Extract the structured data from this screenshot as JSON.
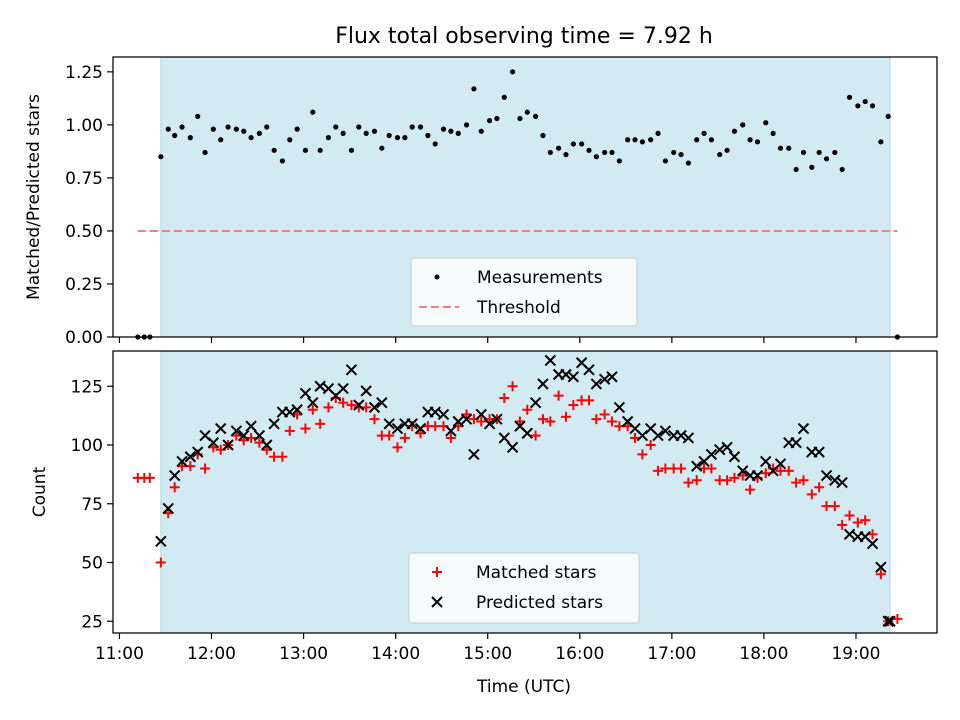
{
  "figure": {
    "title": "Flux total observing time = 7.92 h",
    "xlabel": "Time (UTC)"
  },
  "colors": {
    "shade": "#add8e6",
    "measurement": "#000000",
    "threshold": "#f08080",
    "matched": "#ff0000",
    "predicted": "#000000"
  },
  "chart_data": [
    {
      "type": "scatter",
      "ylabel": "Matched/Predicted stars",
      "xlim": [
        10.93,
        19.88
      ],
      "ylim": [
        0,
        1.32
      ],
      "xticks": [
        11,
        12,
        13,
        14,
        15,
        16,
        17,
        18,
        19
      ],
      "yticks": [
        0,
        0.25,
        0.5,
        0.75,
        1.0,
        1.25
      ],
      "ytick_labels": [
        "0.00",
        "0.25",
        "0.50",
        "0.75",
        "1.00",
        "1.25"
      ],
      "shaded_x_range": [
        11.45,
        19.37
      ],
      "legend": {
        "position": "lower-center",
        "entries": [
          "Measurements",
          "Threshold"
        ]
      },
      "threshold": {
        "name": "Threshold",
        "y": 0.5,
        "x_range": [
          11.2,
          19.45
        ],
        "style": "dashed"
      },
      "series": [
        {
          "name": "Measurements",
          "marker": "dot",
          "x": [
            11.2,
            11.27,
            11.33,
            11.45,
            11.53,
            11.6,
            11.68,
            11.77,
            11.85,
            11.93,
            12.02,
            12.1,
            12.18,
            12.27,
            12.35,
            12.43,
            12.52,
            12.6,
            12.68,
            12.77,
            12.85,
            12.93,
            13.02,
            13.1,
            13.18,
            13.27,
            13.35,
            13.43,
            13.52,
            13.6,
            13.68,
            13.77,
            13.85,
            13.93,
            14.02,
            14.1,
            14.18,
            14.27,
            14.35,
            14.43,
            14.52,
            14.6,
            14.68,
            14.77,
            14.85,
            14.93,
            15.02,
            15.1,
            15.18,
            15.27,
            15.35,
            15.43,
            15.52,
            15.6,
            15.68,
            15.77,
            15.85,
            15.93,
            16.02,
            16.1,
            16.18,
            16.27,
            16.35,
            16.43,
            16.52,
            16.6,
            16.68,
            16.77,
            16.85,
            16.93,
            17.02,
            17.1,
            17.18,
            17.27,
            17.35,
            17.43,
            17.52,
            17.6,
            17.68,
            17.77,
            17.85,
            17.93,
            18.02,
            18.1,
            18.18,
            18.27,
            18.35,
            18.43,
            18.52,
            18.6,
            18.68,
            18.77,
            18.85,
            18.93,
            19.02,
            19.1,
            19.18,
            19.27,
            19.35,
            19.45
          ],
          "y": [
            0,
            0,
            0,
            0.85,
            0.98,
            0.95,
            0.99,
            0.94,
            1.04,
            0.87,
            0.98,
            0.93,
            0.99,
            0.98,
            0.97,
            0.94,
            0.96,
            0.99,
            0.88,
            0.83,
            0.93,
            0.98,
            0.88,
            1.06,
            0.88,
            0.94,
            0.99,
            0.96,
            0.88,
            0.99,
            0.96,
            0.97,
            0.89,
            0.95,
            0.94,
            0.94,
            0.99,
            0.99,
            0.95,
            0.91,
            0.98,
            0.97,
            0.96,
            1.0,
            1.17,
            0.97,
            1.02,
            1.03,
            1.13,
            1.25,
            1.03,
            1.06,
            1.04,
            0.95,
            0.87,
            0.89,
            0.86,
            0.91,
            0.91,
            0.88,
            0.85,
            0.87,
            0.87,
            0.83,
            0.93,
            0.93,
            0.92,
            0.93,
            0.96,
            0.83,
            0.87,
            0.86,
            0.82,
            0.93,
            0.96,
            0.93,
            0.86,
            0.88,
            0.97,
            1.0,
            0.93,
            0.92,
            1.01,
            0.96,
            0.89,
            0.89,
            0.79,
            0.87,
            0.8,
            0.87,
            0.84,
            0.87,
            0.79,
            1.13,
            1.09,
            1.11,
            1.09,
            0.92,
            1.04,
            0
          ]
        }
      ]
    },
    {
      "type": "scatter",
      "ylabel": "Count",
      "xlim": [
        10.93,
        19.88
      ],
      "ylim": [
        20,
        140
      ],
      "xticks": [
        11,
        12,
        13,
        14,
        15,
        16,
        17,
        18,
        19
      ],
      "xtick_labels": [
        "11:00",
        "12:00",
        "13:00",
        "14:00",
        "15:00",
        "16:00",
        "17:00",
        "18:00",
        "19:00"
      ],
      "yticks": [
        25,
        50,
        75,
        100,
        125
      ],
      "ytick_labels": [
        "25",
        "50",
        "75",
        "100",
        "125"
      ],
      "shaded_x_range": [
        11.45,
        19.37
      ],
      "legend": {
        "position": "lower-center",
        "entries": [
          "Matched stars",
          "Predicted stars"
        ]
      },
      "series": [
        {
          "name": "Matched stars",
          "marker": "plus",
          "x": [
            11.2,
            11.27,
            11.33,
            11.45,
            11.53,
            11.6,
            11.68,
            11.77,
            11.85,
            11.93,
            12.02,
            12.1,
            12.18,
            12.27,
            12.35,
            12.43,
            12.52,
            12.6,
            12.68,
            12.77,
            12.85,
            12.93,
            13.02,
            13.1,
            13.18,
            13.27,
            13.35,
            13.43,
            13.52,
            13.6,
            13.68,
            13.77,
            13.85,
            13.93,
            14.02,
            14.1,
            14.18,
            14.27,
            14.35,
            14.43,
            14.52,
            14.6,
            14.68,
            14.77,
            14.85,
            14.93,
            15.02,
            15.1,
            15.18,
            15.27,
            15.35,
            15.43,
            15.52,
            15.6,
            15.68,
            15.77,
            15.85,
            15.93,
            16.02,
            16.1,
            16.18,
            16.27,
            16.35,
            16.43,
            16.52,
            16.6,
            16.68,
            16.77,
            16.85,
            16.93,
            17.02,
            17.1,
            17.18,
            17.27,
            17.35,
            17.43,
            17.52,
            17.6,
            17.68,
            17.77,
            17.85,
            17.93,
            18.02,
            18.1,
            18.18,
            18.27,
            18.35,
            18.43,
            18.52,
            18.6,
            18.68,
            18.77,
            18.85,
            18.93,
            19.02,
            19.1,
            19.18,
            19.27,
            19.35,
            19.45
          ],
          "y": [
            86,
            86,
            86,
            50,
            71,
            82,
            91,
            91,
            96,
            90,
            99,
            98,
            100,
            104,
            102,
            103,
            101,
            98,
            95,
            95,
            106,
            113,
            107,
            115,
            109,
            116,
            120,
            118,
            117,
            116,
            116,
            111,
            104,
            104,
            99,
            103,
            108,
            105,
            108,
            108,
            108,
            103,
            108,
            113,
            111,
            110,
            111,
            111,
            120,
            125,
            110,
            115,
            104,
            111,
            110,
            121,
            112,
            117,
            119,
            119,
            111,
            113,
            110,
            108,
            108,
            103,
            96,
            100,
            89,
            90,
            90,
            90,
            84,
            85,
            90,
            90,
            85,
            85,
            86,
            87,
            81,
            86,
            88,
            90,
            89,
            89,
            84,
            85,
            79,
            82,
            74,
            74,
            66,
            70,
            67,
            68,
            62,
            45,
            25,
            26
          ]
        },
        {
          "name": "Predicted stars",
          "marker": "x",
          "x": [
            11.45,
            11.53,
            11.6,
            11.68,
            11.77,
            11.85,
            11.93,
            12.02,
            12.1,
            12.18,
            12.27,
            12.35,
            12.43,
            12.52,
            12.6,
            12.68,
            12.77,
            12.85,
            12.93,
            13.02,
            13.1,
            13.18,
            13.27,
            13.35,
            13.43,
            13.52,
            13.6,
            13.68,
            13.77,
            13.85,
            13.93,
            14.02,
            14.1,
            14.18,
            14.27,
            14.35,
            14.43,
            14.52,
            14.6,
            14.68,
            14.77,
            14.85,
            14.93,
            15.02,
            15.1,
            15.18,
            15.27,
            15.35,
            15.43,
            15.52,
            15.6,
            15.68,
            15.77,
            15.85,
            15.93,
            16.02,
            16.1,
            16.18,
            16.27,
            16.35,
            16.43,
            16.52,
            16.6,
            16.68,
            16.77,
            16.85,
            16.93,
            17.02,
            17.1,
            17.18,
            17.27,
            17.35,
            17.43,
            17.52,
            17.6,
            17.68,
            17.77,
            17.85,
            17.93,
            18.02,
            18.1,
            18.18,
            18.27,
            18.35,
            18.43,
            18.52,
            18.6,
            18.68,
            18.77,
            18.85,
            18.93,
            19.02,
            19.1,
            19.18,
            19.27,
            19.35,
            19.37
          ],
          "y": [
            59,
            73,
            87,
            93,
            95,
            97,
            104,
            101,
            107,
            100,
            106,
            104,
            108,
            104,
            100,
            109,
            114,
            114,
            115,
            122,
            118,
            125,
            124,
            121,
            124,
            132,
            117,
            123,
            116,
            118,
            109,
            107,
            109,
            109,
            107,
            114,
            114,
            113,
            106,
            110,
            111,
            96,
            113,
            109,
            111,
            103,
            99,
            108,
            105,
            118,
            126,
            136,
            130,
            130,
            129,
            135,
            132,
            126,
            128,
            129,
            116,
            110,
            107,
            104,
            107,
            104,
            106,
            104,
            104,
            103,
            91,
            93,
            96,
            98,
            99,
            95,
            89,
            87,
            87,
            93,
            89,
            92,
            101,
            101,
            107,
            97,
            97,
            87,
            85,
            84,
            62,
            61,
            61,
            58,
            48,
            25,
            25
          ]
        }
      ]
    }
  ]
}
